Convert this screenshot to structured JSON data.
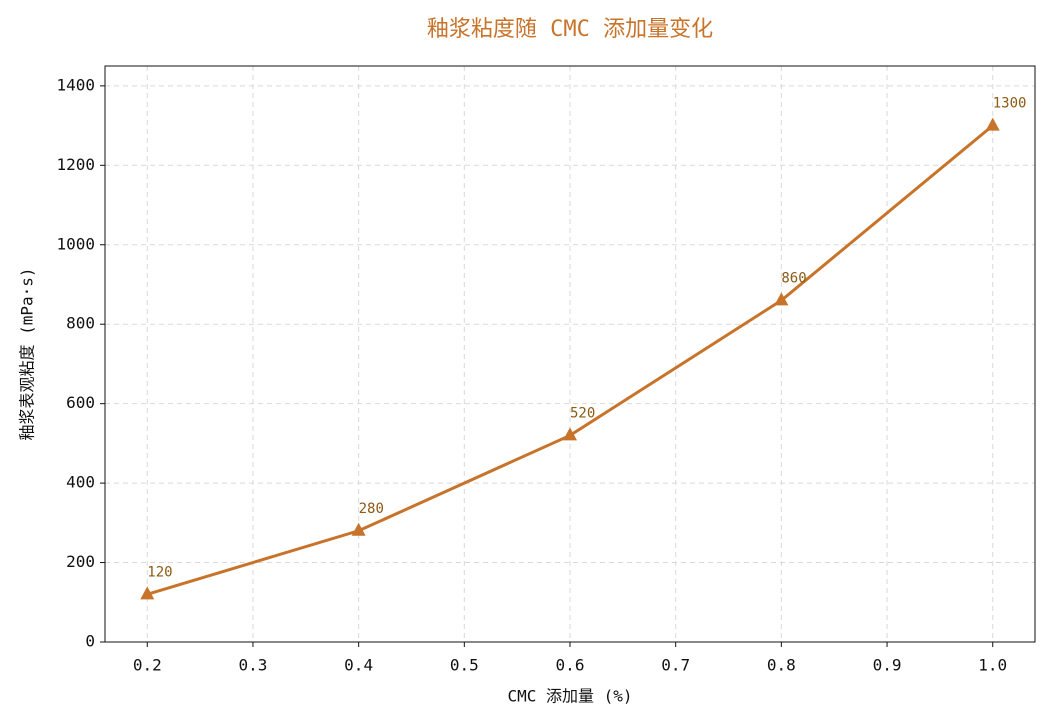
{
  "chart_data": {
    "type": "line",
    "title": "釉浆粘度随 CMC 添加量变化",
    "x_label": "CMC 添加量 (%)",
    "y_label": "釉浆表观粘度 (mPa·s)",
    "x": [
      0.2,
      0.4,
      0.6,
      0.8,
      1.0
    ],
    "series": [
      {
        "name": "釉浆表观粘度",
        "color": "#c8732a",
        "values": [
          120,
          280,
          520,
          860,
          1300
        ]
      }
    ],
    "xlim": [
      0.16,
      1.04
    ],
    "ylim": [
      0,
      1450
    ],
    "xticks": [
      0.2,
      0.3,
      0.4,
      0.5,
      0.6,
      0.7,
      0.8,
      0.9,
      {
        "value": 1,
        "label": "1.0"
      }
    ],
    "yticks": [
      0,
      200,
      400,
      600,
      800,
      1000,
      1200,
      1400
    ],
    "grid": true,
    "marker": "triangle",
    "value_label_color": "#8b5a14"
  }
}
